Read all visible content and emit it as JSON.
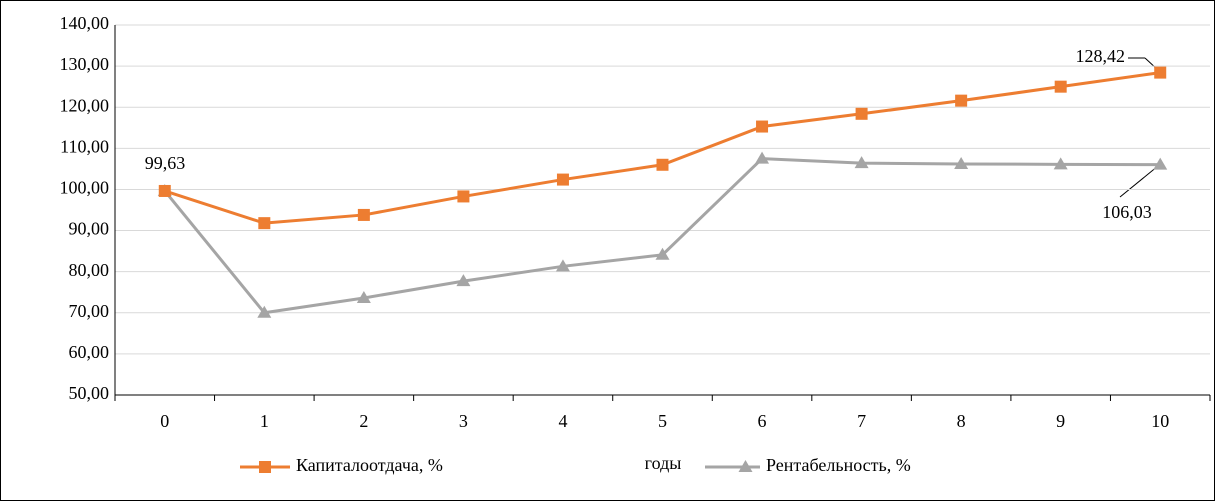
{
  "chart_data": {
    "type": "line",
    "x_label": "годы",
    "categories": [
      "0",
      "1",
      "2",
      "3",
      "4",
      "5",
      "6",
      "7",
      "8",
      "9",
      "10"
    ],
    "series": [
      {
        "name": "Капиталоотдача, %",
        "color": "#ed7d31",
        "marker": "square",
        "values": [
          99.63,
          91.8,
          93.8,
          98.3,
          102.4,
          106.0,
          115.3,
          118.4,
          121.6,
          125.0,
          128.42
        ],
        "value_labels": [
          "99,63",
          null,
          null,
          null,
          null,
          null,
          null,
          null,
          null,
          null,
          "128,42"
        ]
      },
      {
        "name": "Рентабельность, %",
        "color": "#a5a5a5",
        "marker": "triangle",
        "values": [
          99.63,
          70.0,
          73.6,
          77.7,
          81.3,
          84.1,
          107.5,
          106.4,
          106.2,
          106.1,
          106.03
        ],
        "value_labels": [
          null,
          null,
          null,
          null,
          null,
          null,
          null,
          null,
          null,
          null,
          "106,03"
        ]
      }
    ],
    "ylim": [
      50,
      140
    ],
    "yticks": [
      {
        "value": 50,
        "label": "50,00"
      },
      {
        "value": 60,
        "label": "60,00"
      },
      {
        "value": 70,
        "label": "70,00"
      },
      {
        "value": 80,
        "label": "80,00"
      },
      {
        "value": 90,
        "label": "90,00"
      },
      {
        "value": 100,
        "label": "100,00"
      },
      {
        "value": 110,
        "label": "110,00"
      },
      {
        "value": 120,
        "label": "120,00"
      },
      {
        "value": 130,
        "label": "130,00"
      },
      {
        "value": 140,
        "label": "140,00"
      }
    ],
    "grid": true,
    "legend": "bottom"
  }
}
